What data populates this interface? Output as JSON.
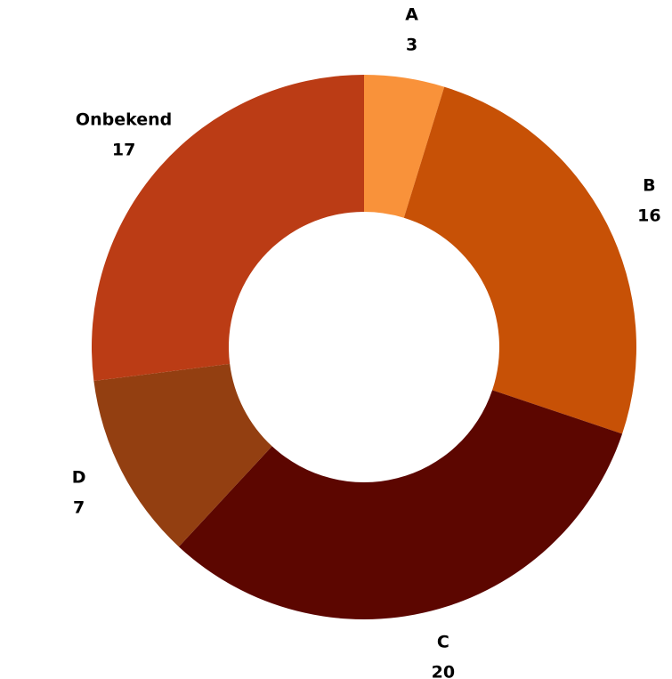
{
  "chart_data": {
    "type": "pie",
    "categories": [
      "A",
      "B",
      "C",
      "D",
      "Onbekend"
    ],
    "values": [
      3,
      16,
      20,
      7,
      17
    ],
    "colors": [
      "#f9923a",
      "#c75106",
      "#5c0600",
      "#933f11",
      "#bb3c15"
    ],
    "donut": true
  }
}
